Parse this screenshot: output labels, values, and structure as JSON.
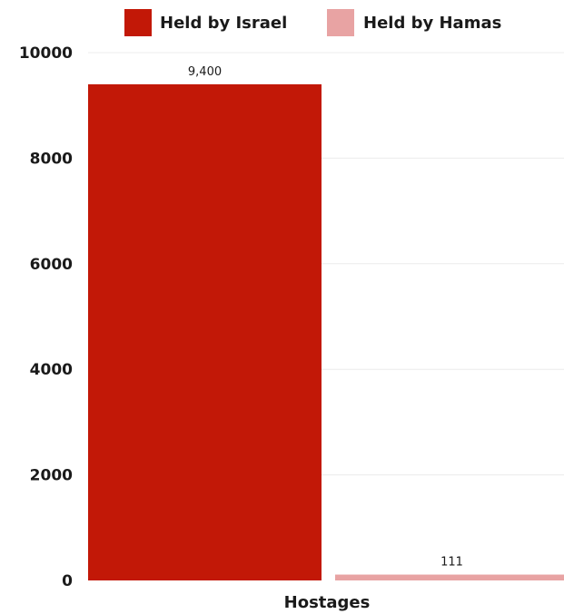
{
  "chart_data": {
    "type": "bar",
    "categories": [
      "Hostages"
    ],
    "series": [
      {
        "name": "Held by Israel",
        "values": [
          9400
        ],
        "value_labels": [
          "9,400"
        ],
        "color": "#c21807"
      },
      {
        "name": "Held by Hamas",
        "values": [
          111
        ],
        "value_labels": [
          "111"
        ],
        "color": "#e8a3a3"
      }
    ],
    "ylim": [
      0,
      10000
    ],
    "yticks": [
      0,
      2000,
      4000,
      6000,
      8000,
      10000
    ],
    "grid": true,
    "legend_position": "top",
    "title": "",
    "xlabel": "",
    "ylabel": ""
  }
}
